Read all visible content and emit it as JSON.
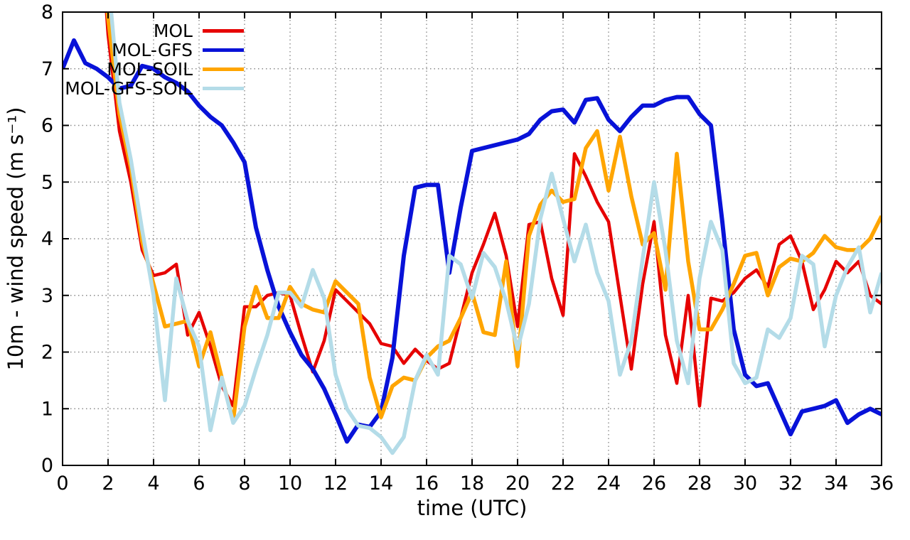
{
  "figure": {
    "background": "#ffffff",
    "border_color": "#000000",
    "grid_color": "#8a8a8a",
    "tick_color": "#000000"
  },
  "chart_data": {
    "type": "line",
    "title": "",
    "xlabel": "time (UTC)",
    "ylabel": "10m - wind speed  (m s⁻¹)",
    "xlim": [
      0,
      36
    ],
    "ylim": [
      0,
      8
    ],
    "xticks": [
      0,
      2,
      4,
      6,
      8,
      10,
      12,
      14,
      16,
      18,
      20,
      22,
      24,
      26,
      28,
      30,
      32,
      34,
      36
    ],
    "yticks": [
      0,
      1,
      2,
      3,
      4,
      5,
      6,
      7,
      8
    ],
    "grid": true,
    "legend_position": "top-left-inside",
    "x_step": 0.5,
    "series": [
      {
        "name": "MOL",
        "color": "#e60000",
        "width": 4.5,
        "t_start": 1.5,
        "values": [
          10.5,
          7.6,
          5.9,
          5.0,
          3.8,
          3.35,
          3.4,
          3.55,
          2.3,
          2.7,
          2.1,
          1.4,
          1.05,
          2.8,
          2.8,
          3.0,
          3.05,
          3.0,
          2.3,
          1.65,
          2.2,
          3.1,
          2.9,
          2.7,
          2.5,
          2.15,
          2.1,
          1.8,
          2.05,
          1.85,
          1.7,
          1.8,
          2.6,
          3.4,
          3.9,
          4.45,
          3.7,
          2.45,
          4.25,
          4.3,
          3.3,
          2.65,
          5.5,
          5.1,
          4.65,
          4.3,
          3.0,
          1.7,
          3.2,
          4.3,
          2.3,
          1.45,
          3.0,
          1.05,
          2.95,
          2.9,
          3.05,
          3.3,
          3.45,
          3.15,
          3.9,
          4.05,
          3.6,
          2.75,
          3.1,
          3.6,
          3.4,
          3.6,
          3.0,
          2.85
        ]
      },
      {
        "name": "MOL-GFS",
        "color": "#0812d8",
        "width": 6,
        "t_start": 0,
        "values": [
          7.0,
          7.5,
          7.1,
          7.0,
          6.85,
          6.65,
          6.7,
          7.05,
          7.0,
          6.85,
          6.75,
          6.6,
          6.35,
          6.15,
          6.0,
          5.7,
          5.35,
          4.2,
          3.45,
          2.8,
          2.35,
          1.95,
          1.7,
          1.35,
          0.9,
          0.42,
          0.72,
          0.68,
          0.95,
          1.9,
          3.7,
          4.9,
          4.95,
          4.95,
          3.4,
          4.55,
          5.55,
          5.6,
          5.65,
          5.7,
          5.75,
          5.85,
          6.1,
          6.25,
          6.28,
          6.05,
          6.45,
          6.48,
          6.1,
          5.9,
          6.15,
          6.35,
          6.35,
          6.45,
          6.5,
          6.5,
          6.2,
          6.0,
          4.3,
          2.4,
          1.6,
          1.4,
          1.45,
          1.0,
          0.55,
          0.95,
          1.0,
          1.05,
          1.15,
          0.75,
          0.9,
          1.0,
          0.9
        ]
      },
      {
        "name": "MOL-SOIL",
        "color": "#ffa500",
        "width": 5.5,
        "t_start": 1.5,
        "values": [
          10.5,
          7.9,
          6.2,
          5.25,
          3.95,
          3.2,
          2.45,
          2.5,
          2.55,
          1.75,
          2.35,
          1.55,
          0.78,
          2.45,
          3.15,
          2.6,
          2.6,
          3.15,
          2.85,
          2.75,
          2.7,
          3.25,
          3.05,
          2.85,
          1.55,
          0.85,
          1.4,
          1.55,
          1.5,
          1.9,
          2.1,
          2.2,
          2.6,
          3.05,
          2.35,
          2.3,
          3.6,
          1.75,
          4.05,
          4.6,
          4.85,
          4.65,
          4.7,
          5.6,
          5.9,
          4.85,
          5.8,
          4.75,
          3.9,
          4.1,
          3.1,
          5.5,
          3.6,
          2.4,
          2.4,
          2.75,
          3.2,
          3.7,
          3.75,
          3.0,
          3.5,
          3.65,
          3.6,
          3.75,
          4.05,
          3.85,
          3.8,
          3.8,
          4.0,
          4.4
        ]
      },
      {
        "name": "MOL-GFS-SOIL",
        "color": "#b4dce8",
        "width": 5.5,
        "t_start": 1.5,
        "values": [
          10.5,
          8.6,
          6.4,
          5.4,
          4.15,
          3.0,
          1.15,
          3.3,
          2.55,
          2.1,
          0.62,
          1.55,
          0.75,
          1.05,
          1.7,
          2.3,
          3.05,
          3.05,
          2.8,
          3.45,
          2.95,
          1.6,
          1.0,
          0.7,
          0.66,
          0.5,
          0.22,
          0.5,
          1.5,
          1.95,
          1.6,
          3.7,
          3.55,
          2.95,
          3.75,
          3.5,
          2.9,
          2.05,
          2.85,
          4.35,
          5.15,
          4.35,
          3.6,
          4.25,
          3.4,
          2.9,
          1.6,
          2.2,
          3.65,
          5.0,
          3.8,
          2.2,
          1.45,
          3.3,
          4.3,
          3.8,
          1.8,
          1.45,
          1.55,
          2.4,
          2.25,
          2.6,
          3.7,
          3.55,
          2.1,
          3.0,
          3.5,
          3.85,
          2.7,
          3.4
        ]
      }
    ]
  }
}
